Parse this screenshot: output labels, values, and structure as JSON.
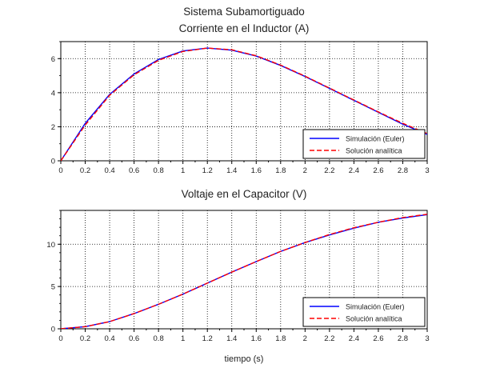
{
  "figure": {
    "suptitle": "Sistema Subamortiguado",
    "xlabel": "tiempo (s)"
  },
  "colors": {
    "simulation": "#0000ff",
    "analytic": "#ff0000",
    "grid": "#000000",
    "axes": "#000000"
  },
  "chart_data": [
    {
      "type": "line",
      "title": "Corriente en el Inductor (A)",
      "xlabel": "",
      "ylabel": "",
      "xlim": [
        0,
        3
      ],
      "ylim": [
        0,
        7
      ],
      "xticks": [
        0,
        0.2,
        0.4,
        0.6,
        0.8,
        1,
        1.2,
        1.4,
        1.6,
        1.8,
        2,
        2.2,
        2.4,
        2.6,
        2.8,
        3
      ],
      "xtick_labels": [
        "0",
        "0.2",
        "0.4",
        "0.6",
        "0.8",
        "1",
        "1.2",
        "1.4",
        "1.6",
        "1.8",
        "2",
        "2.2",
        "2.4",
        "2.6",
        "2.8",
        "3"
      ],
      "yticks": [
        0,
        2,
        4,
        6
      ],
      "ytick_labels": [
        "0",
        "2",
        "4",
        "6"
      ],
      "grid": true,
      "legend_position": "bottom-right",
      "x": [
        0,
        0.2,
        0.4,
        0.6,
        0.8,
        1.0,
        1.2,
        1.4,
        1.6,
        1.8,
        2.0,
        2.2,
        2.4,
        2.6,
        2.8,
        3.0
      ],
      "series": [
        {
          "name": "Simulación (Euler)",
          "style": "solid",
          "values": [
            0,
            2.2,
            3.9,
            5.1,
            5.95,
            6.45,
            6.62,
            6.5,
            6.15,
            5.6,
            4.95,
            4.25,
            3.55,
            2.85,
            2.15,
            1.55
          ]
        },
        {
          "name": "Solución analítica",
          "style": "dashed",
          "values": [
            0,
            2.1,
            3.85,
            5.05,
            5.9,
            6.42,
            6.62,
            6.52,
            6.17,
            5.62,
            4.97,
            4.27,
            3.57,
            2.87,
            2.2,
            1.6
          ]
        }
      ]
    },
    {
      "type": "line",
      "title": "Voltaje en el Capacitor (V)",
      "xlabel": "tiempo (s)",
      "ylabel": "",
      "xlim": [
        0,
        3
      ],
      "ylim": [
        0,
        14
      ],
      "xticks": [
        0,
        0.2,
        0.4,
        0.6,
        0.8,
        1,
        1.2,
        1.4,
        1.6,
        1.8,
        2,
        2.2,
        2.4,
        2.6,
        2.8,
        3
      ],
      "xtick_labels": [
        "0",
        "0.2",
        "0.4",
        "0.6",
        "0.8",
        "1",
        "1.2",
        "1.4",
        "1.6",
        "1.8",
        "2",
        "2.2",
        "2.4",
        "2.6",
        "2.8",
        "3"
      ],
      "yticks": [
        0,
        5,
        10
      ],
      "ytick_labels": [
        "0",
        "5",
        "10"
      ],
      "grid": true,
      "legend_position": "bottom-right",
      "x": [
        0,
        0.2,
        0.4,
        0.6,
        0.8,
        1.0,
        1.2,
        1.4,
        1.6,
        1.8,
        2.0,
        2.2,
        2.4,
        2.6,
        2.8,
        3.0
      ],
      "series": [
        {
          "name": "Simulación (Euler)",
          "style": "solid",
          "values": [
            0,
            0.25,
            0.85,
            1.8,
            2.9,
            4.1,
            5.4,
            6.7,
            7.95,
            9.15,
            10.2,
            11.1,
            11.9,
            12.6,
            13.1,
            13.5
          ]
        },
        {
          "name": "Solución analítica",
          "style": "dashed",
          "values": [
            0,
            0.25,
            0.85,
            1.8,
            2.9,
            4.1,
            5.4,
            6.7,
            7.95,
            9.15,
            10.2,
            11.15,
            11.95,
            12.6,
            13.15,
            13.55
          ]
        }
      ]
    }
  ]
}
